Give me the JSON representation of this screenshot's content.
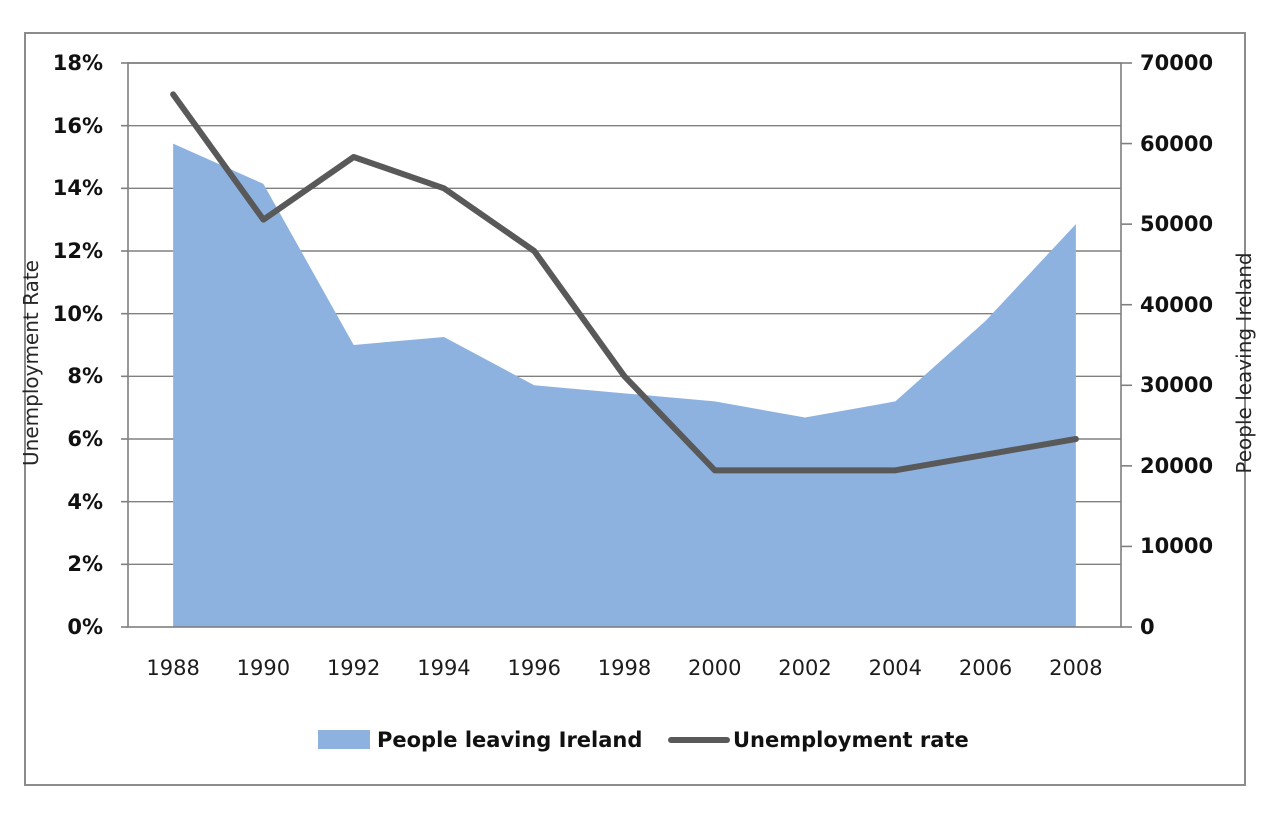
{
  "chart_data": {
    "type": "combo",
    "categories": [
      "1988",
      "1990",
      "1992",
      "1994",
      "1996",
      "1998",
      "2000",
      "2002",
      "2004",
      "2006",
      "2008"
    ],
    "series": [
      {
        "name": "People leaving Ireland",
        "type": "area",
        "axis": "right",
        "color": "#8EB2E0",
        "values": [
          60000,
          55000,
          35000,
          36000,
          30000,
          29000,
          28000,
          26000,
          28000,
          38000,
          50000
        ]
      },
      {
        "name": "Unemployment rate",
        "type": "line",
        "axis": "left",
        "color": "#595959",
        "values": [
          17,
          13,
          15,
          14,
          12,
          8,
          5,
          5,
          5,
          5.5,
          6
        ]
      }
    ],
    "left_axis": {
      "title": "Unemployment Rate",
      "min": 0,
      "max": 18,
      "step": 2,
      "tick_labels": [
        "0%",
        "2%",
        "4%",
        "6%",
        "8%",
        "10%",
        "12%",
        "14%",
        "16%",
        "18%"
      ]
    },
    "right_axis": {
      "title": "People leaving Ireland",
      "min": 0,
      "max": 70000,
      "step": 10000,
      "tick_labels": [
        "0",
        "10000",
        "20000",
        "30000",
        "40000",
        "50000",
        "60000",
        "70000"
      ]
    },
    "x_axis": {
      "tick_labels": [
        "1988",
        "1990",
        "1992",
        "1994",
        "1996",
        "1998",
        "2000",
        "2002",
        "2004",
        "2006",
        "2008"
      ]
    },
    "grid": true,
    "legend": {
      "position": "bottom",
      "items": [
        {
          "label": "People leaving Ireland",
          "swatch": "area",
          "color": "#8EB2E0"
        },
        {
          "label": "Unemployment rate",
          "swatch": "line",
          "color": "#595959"
        }
      ]
    },
    "colors": {
      "gridline": "#808080",
      "plot_border": "#7f7f7f",
      "frame_border": "#8c8c8c"
    }
  }
}
